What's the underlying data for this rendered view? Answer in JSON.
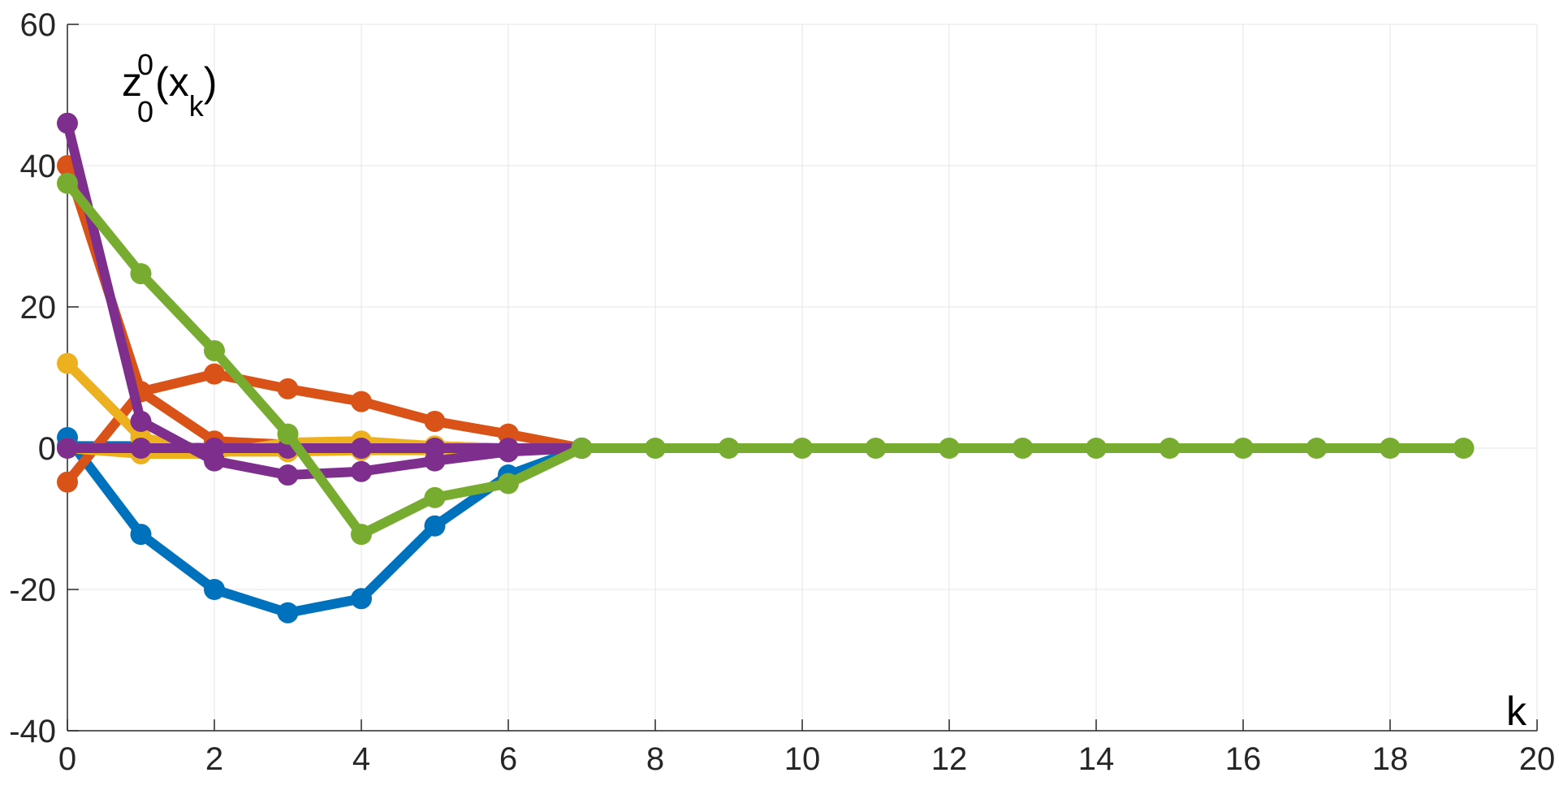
{
  "chart_data": {
    "type": "line",
    "xlim": [
      0,
      20
    ],
    "ylim": [
      -40,
      60
    ],
    "xticks": [
      0,
      2,
      4,
      6,
      8,
      10,
      12,
      14,
      16,
      18,
      20
    ],
    "yticks": [
      -40,
      -20,
      0,
      20,
      40,
      60
    ],
    "xtick_labels": [
      "0",
      "2",
      "4",
      "6",
      "8",
      "10",
      "12",
      "14",
      "16",
      "18",
      "20"
    ],
    "ytick_labels": [
      "-40",
      "-20",
      "0",
      "20",
      "40",
      "60"
    ],
    "grid": true,
    "ylabel": {
      "base": "z",
      "sub": "0",
      "sup": "0",
      "arg_open": "(x",
      "arg_sub": "k",
      "arg_close": ")"
    },
    "xlabel": "k",
    "series": [
      {
        "color": "#0072BD",
        "x": [
          0,
          1,
          2,
          3,
          4,
          5,
          6,
          7
        ],
        "y": [
          1.5,
          -12.2,
          -20.0,
          -23.3,
          -21.3,
          -11.0,
          -3.8,
          0
        ]
      },
      {
        "color": "#0072BD",
        "x": [
          0,
          1,
          2,
          3,
          4,
          5,
          6,
          7
        ],
        "y": [
          0.3,
          0.3,
          0.0,
          0.0,
          0.0,
          0.0,
          0.0,
          0
        ]
      },
      {
        "color": "#D95319",
        "x": [
          0,
          1,
          2,
          3,
          4,
          5,
          6,
          7
        ],
        "y": [
          -4.8,
          8.0,
          10.5,
          8.4,
          6.6,
          3.8,
          2.0,
          0
        ]
      },
      {
        "color": "#D95319",
        "x": [
          0,
          1,
          2,
          3,
          4,
          5,
          6,
          7
        ],
        "y": [
          40.0,
          8.0,
          1.0,
          0.5,
          0.5,
          0.3,
          0.0,
          0
        ]
      },
      {
        "color": "#EDB120",
        "x": [
          0,
          1,
          2,
          3,
          4,
          5,
          6,
          7
        ],
        "y": [
          12.0,
          1.5,
          -0.5,
          -0.5,
          -0.3,
          -0.3,
          -0.1,
          0
        ]
      },
      {
        "color": "#EDB120",
        "x": [
          0,
          1,
          2,
          3,
          4,
          5,
          6,
          7
        ],
        "y": [
          0.0,
          -0.8,
          -0.8,
          0.8,
          1.0,
          0.3,
          0.0,
          0
        ]
      },
      {
        "color": "#7E2F8E",
        "x": [
          0,
          1,
          2,
          3,
          4,
          5,
          6,
          7
        ],
        "y": [
          46.0,
          3.8,
          -1.8,
          -3.8,
          -3.3,
          -1.8,
          -0.5,
          0
        ]
      },
      {
        "color": "#7E2F8E",
        "x": [
          0,
          1,
          2,
          3,
          4,
          5,
          6,
          7
        ],
        "y": [
          0.0,
          0.0,
          0.0,
          0.0,
          0.0,
          0.0,
          0.0,
          0
        ]
      },
      {
        "color": "#77AC30",
        "x": [
          0,
          1,
          2,
          3,
          4,
          5,
          6,
          7,
          8,
          9,
          10,
          11,
          12,
          13,
          14,
          15,
          16,
          17,
          18,
          19
        ],
        "y": [
          37.5,
          24.7,
          13.8,
          2.0,
          -12.2,
          -7.0,
          -5.0,
          0,
          0,
          0,
          0,
          0,
          0,
          0,
          0,
          0,
          0,
          0,
          0,
          0
        ]
      }
    ]
  }
}
